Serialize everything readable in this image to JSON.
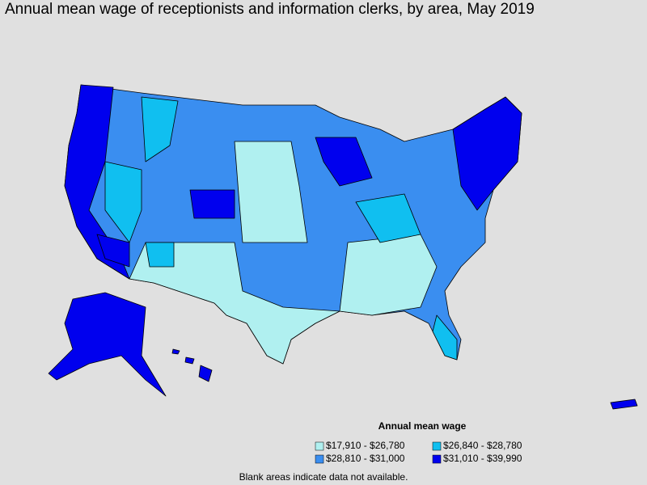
{
  "title": "Annual mean wage of receptionists and information clerks, by area, May 2019",
  "legend": {
    "title": "Annual mean wage",
    "items": [
      {
        "label": "$17,910 - $26,780",
        "color": "#b0f0f0"
      },
      {
        "label": "$26,840 - $28,780",
        "color": "#10bff0"
      },
      {
        "label": "$28,810 - $31,000",
        "color": "#3a8ef0"
      },
      {
        "label": "$31,010 - $39,990",
        "color": "#0000ee"
      }
    ]
  },
  "note": "Blank areas indicate data not available."
}
